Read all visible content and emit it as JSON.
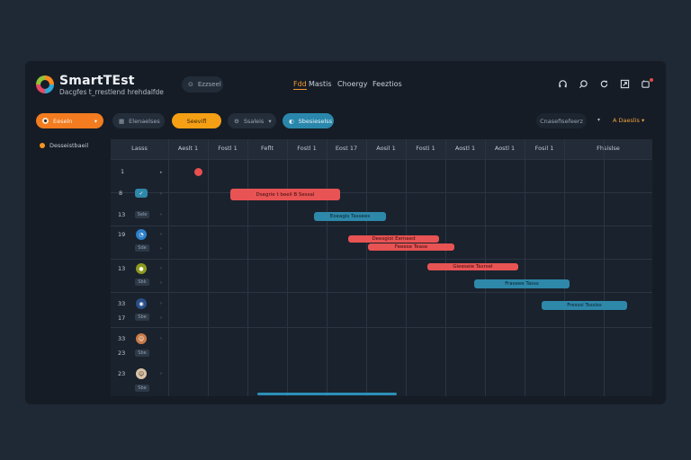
{
  "app": {
    "name": "SmartTEst",
    "subtitle": "Dacgfes t_rrestlend hrehdalfde"
  },
  "header": {
    "search_label": "Ezzseel",
    "nav": [
      "Fdd",
      "Mastis",
      "Choergy",
      "Feeztios"
    ],
    "active_nav": "Fdd",
    "icons": [
      "headphones-icon",
      "search-icon",
      "refresh-icon",
      "share-icon",
      "notification-icon"
    ]
  },
  "toolbar": {
    "filter1": "Eeseln",
    "filter1_caret": "▾",
    "filter2": "Elenaelses",
    "filter3": "Seevifl",
    "filter4": "Ssaleis",
    "filter4_caret": "▾",
    "filter5": "Sbesieselss",
    "right_filter": "Cnasefisefeerz",
    "right_caret": "▾",
    "sort_label": "A Daeslis ▾"
  },
  "sidebar": {
    "items": [
      {
        "label": "Desseistbaeil"
      }
    ]
  },
  "grid": {
    "first_col_header": "Lasss",
    "columns": [
      "Aeslt 1",
      "Fostl 1",
      "Feflt",
      "Fostl 1",
      "Eost 17",
      "Aosil 1",
      "Fosti 1",
      "Aostl 1",
      "Aostl 1",
      "Fosil 1",
      "Fhsislse"
    ],
    "rows": [
      {
        "num": "1",
        "icon": "",
        "tag": ""
      },
      {
        "num": "8",
        "icon": "check-icon",
        "tag": ""
      },
      {
        "num": "13",
        "icon": "",
        "tag": "Sele"
      },
      {
        "num": "19",
        "icon": "avatar-blue",
        "tag": "Sde"
      },
      {
        "num": "13",
        "icon": "avatar-green",
        "tag": "Sbk"
      },
      {
        "num": "33",
        "icon": "avatar-globe",
        "tag": "Sbe"
      },
      {
        "num": "17",
        "icon": "",
        "tag": ""
      },
      {
        "num": "33",
        "icon": "avatar-person1",
        "tag": "Sbe"
      },
      {
        "num": "23",
        "icon": "avatar-person2",
        "tag": "Sbe"
      }
    ],
    "bars": [
      {
        "label": "Dsegrie t beeil B Sessal",
        "color": "red"
      },
      {
        "label": "Eoeagis Tassees",
        "color": "blue"
      },
      {
        "label": "Deesgist Eemaed",
        "color": "red"
      },
      {
        "label": "Feeese Tease",
        "color": "red"
      },
      {
        "label": "Gieeseie Tasrsel",
        "color": "red"
      },
      {
        "label": "Fraseee Tasss",
        "color": "blue"
      },
      {
        "label": "Fresssi Tsssiss",
        "color": "blue"
      }
    ]
  },
  "colors": {
    "accent_orange": "#f27c1f",
    "accent_yellow": "#f59f14",
    "accent_blue": "#2a87ab",
    "bar_red": "#e85354",
    "bar_blue": "#2e88aa"
  }
}
